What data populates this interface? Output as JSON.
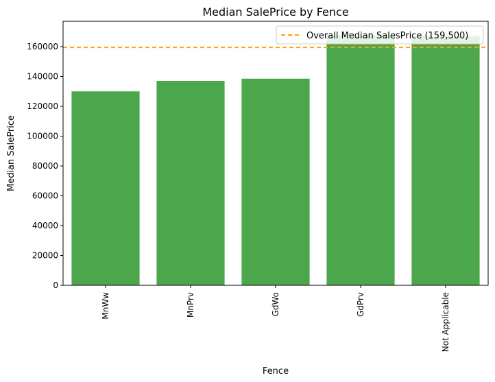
{
  "chart_data": {
    "type": "bar",
    "title": "Median SalePrice by Fence",
    "xlabel": "Fence",
    "ylabel": "Median SalePrice",
    "categories": [
      "MnWw",
      "MnPrv",
      "GdWo",
      "GdPrv",
      "Not Applicable"
    ],
    "values": [
      130000,
      137000,
      138500,
      167500,
      167000
    ],
    "ylim": [
      0,
      177000
    ],
    "yticks": [
      0,
      20000,
      40000,
      60000,
      80000,
      100000,
      120000,
      140000,
      160000
    ],
    "ytick_labels": [
      "0",
      "20000",
      "40000",
      "60000",
      "80000",
      "100000",
      "120000",
      "140000",
      "160000"
    ],
    "bar_color": "#4ca64c",
    "reference_line": {
      "value": 159500,
      "label": "Overall Median SalesPrice (159,500)",
      "color": "#ffa500",
      "style": "dashed"
    },
    "legend_position": "top-right",
    "grid": false
  }
}
